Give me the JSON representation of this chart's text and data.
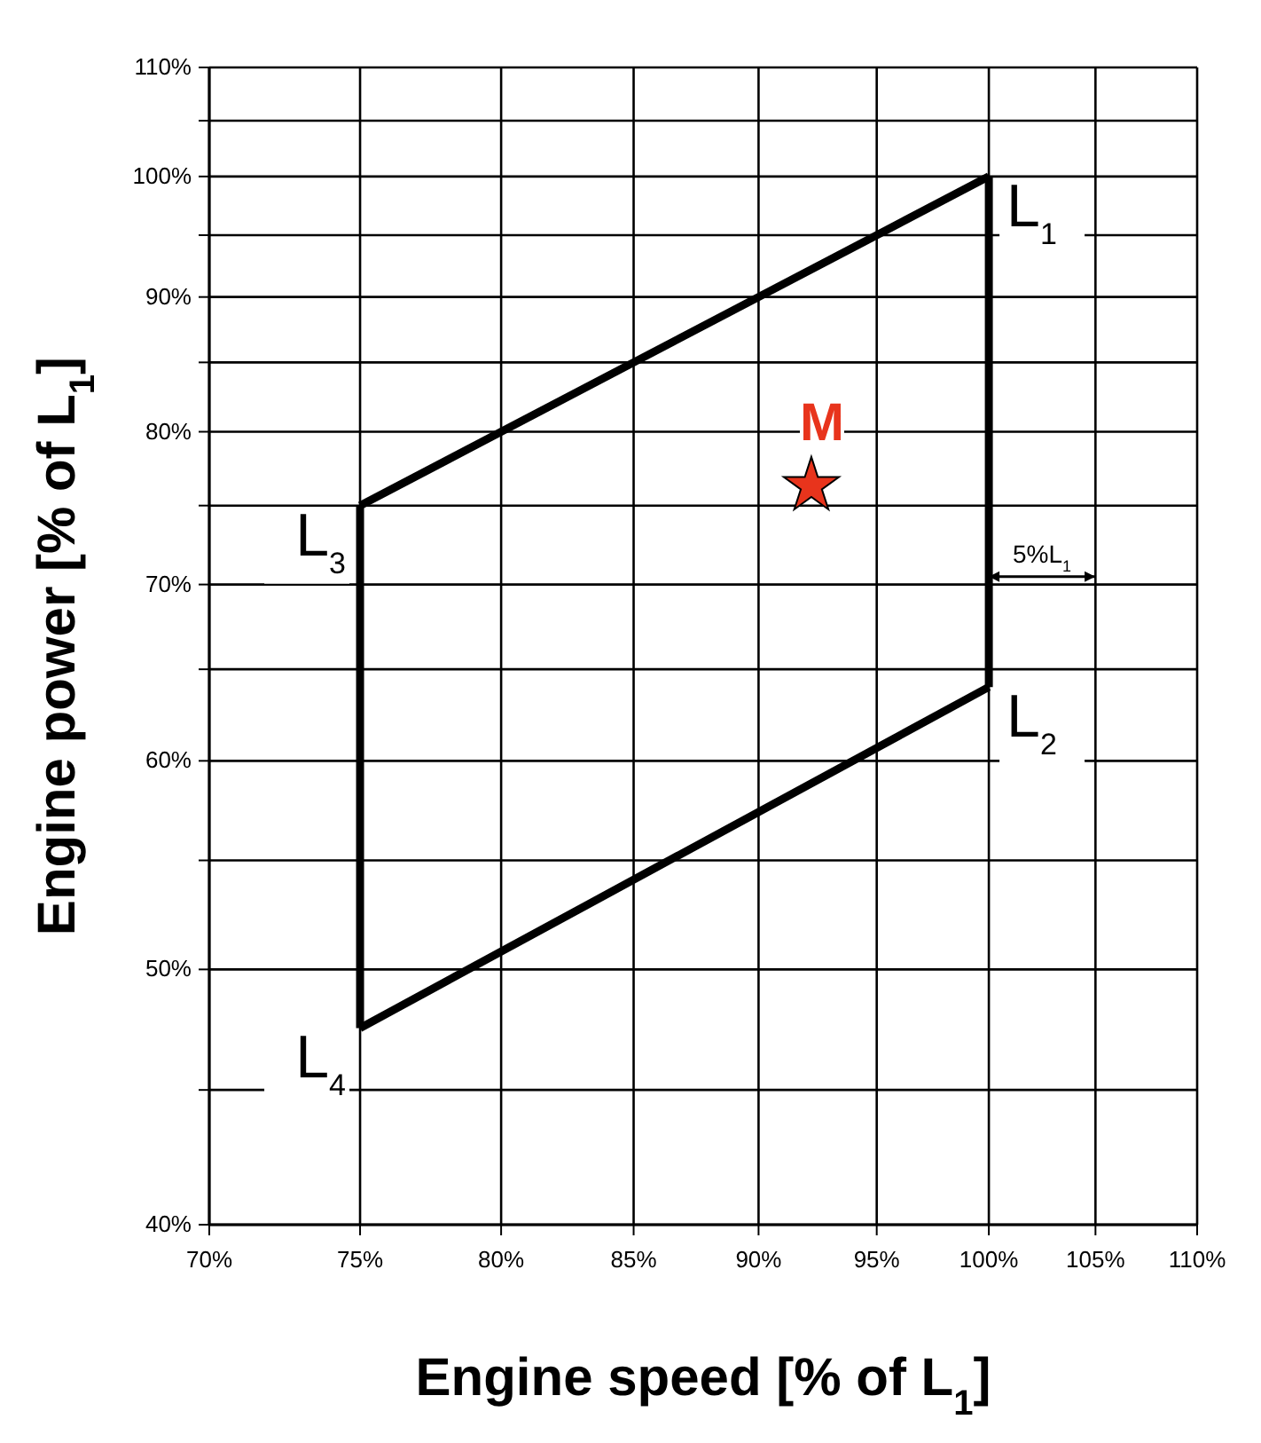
{
  "chart_data": {
    "type": "line",
    "xlabel": "Engine speed [% of L$_{1}$]",
    "ylabel": "Engine power [% of L$_{1}$]",
    "log": "xy",
    "grid": true,
    "xlim": [
      70,
      110
    ],
    "ylim": [
      40,
      110
    ],
    "xticks": [
      {
        "value": 70,
        "label": "70%"
      },
      {
        "value": 75,
        "label": "75%"
      },
      {
        "value": 80,
        "label": "80%"
      },
      {
        "value": 85,
        "label": "85%"
      },
      {
        "value": 90,
        "label": "90%"
      },
      {
        "value": 95,
        "label": "95%"
      },
      {
        "value": 100,
        "label": "100%"
      },
      {
        "value": 105,
        "label": "105%"
      },
      {
        "value": 110,
        "label": "110%"
      }
    ],
    "yticks": [
      {
        "value": 40,
        "label": "40%"
      },
      {
        "value": 45,
        "label": null
      },
      {
        "value": 50,
        "label": "50%"
      },
      {
        "value": 55,
        "label": null
      },
      {
        "value": 60,
        "label": "60%"
      },
      {
        "value": 65,
        "label": null
      },
      {
        "value": 70,
        "label": "70%"
      },
      {
        "value": 75,
        "label": null
      },
      {
        "value": 80,
        "label": "80%"
      },
      {
        "value": 85,
        "label": null
      },
      {
        "value": 90,
        "label": "90%"
      },
      {
        "value": 95,
        "label": null
      },
      {
        "value": 100,
        "label": "100%"
      },
      {
        "value": 105,
        "label": null
      },
      {
        "value": 110,
        "label": "110%"
      }
    ],
    "series": [
      {
        "color": "#000000",
        "marker": "none",
        "line_style": "solid",
        "x": [
          75,
          100
        ],
        "values": [
          75,
          100
        ]
      },
      {
        "color": "#000000",
        "marker": "none",
        "line_style": "solid",
        "x": [
          100,
          100
        ],
        "values": [
          100,
          64
        ]
      },
      {
        "color": "#000000",
        "marker": "none",
        "line_style": "solid",
        "x": [
          75,
          100
        ],
        "values": [
          47.5,
          64
        ]
      },
      {
        "color": "#000000",
        "marker": "none",
        "line_style": "solid",
        "x": [
          75,
          75
        ],
        "values": [
          47.5,
          75
        ]
      },
      {
        "type": "scatter",
        "color": "#e8341c",
        "marker": "star",
        "x": [
          92.2
        ],
        "values": [
          76.3
        ]
      }
    ],
    "annotations": [
      {
        "text": "L$_{1}$",
        "x": 100,
        "y": 100
      },
      {
        "text": "L$_{2}$",
        "x": 100,
        "y": 64
      },
      {
        "text": "L$_{3}$",
        "x": 75,
        "y": 75
      },
      {
        "text": "L$_{4}$",
        "x": 75,
        "y": 47.5
      },
      {
        "text": "M",
        "x": 92.2,
        "y": 76.3
      },
      "5%L$_{1}$"
    ]
  }
}
